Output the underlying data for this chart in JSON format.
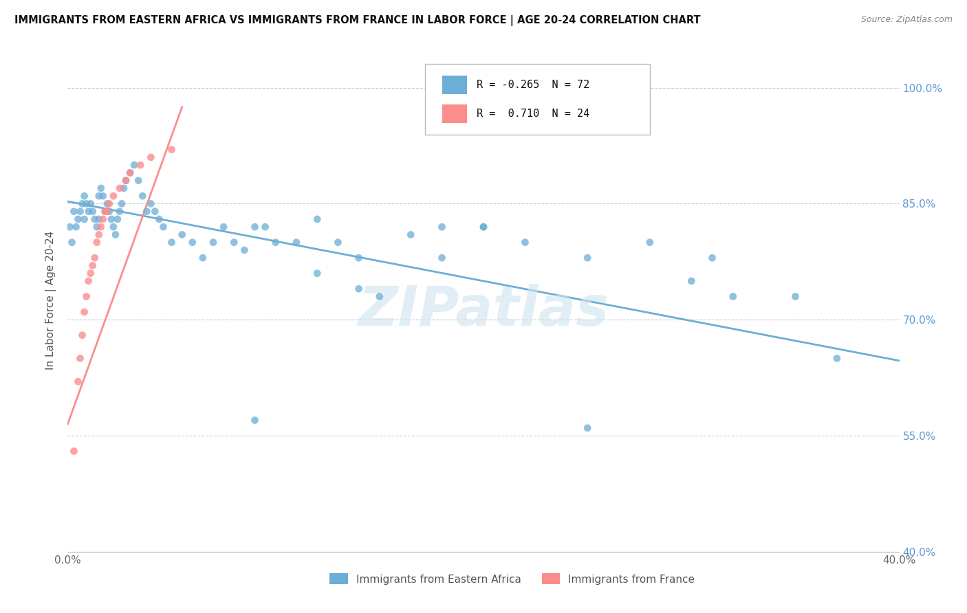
{
  "title": "IMMIGRANTS FROM EASTERN AFRICA VS IMMIGRANTS FROM FRANCE IN LABOR FORCE | AGE 20-24 CORRELATION CHART",
  "source": "Source: ZipAtlas.com",
  "ylabel": "In Labor Force | Age 20-24",
  "xlim": [
    0.0,
    0.4
  ],
  "ylim": [
    0.4,
    1.05
  ],
  "y_tick_positions": [
    0.4,
    0.55,
    0.7,
    0.85,
    1.0
  ],
  "y_tick_labels": [
    "40.0%",
    "55.0%",
    "70.0%",
    "85.0%",
    "100.0%"
  ],
  "x_tick_positions": [
    0.0,
    0.05,
    0.1,
    0.15,
    0.2,
    0.25,
    0.3,
    0.35,
    0.4
  ],
  "x_tick_labels": [
    "0.0%",
    "",
    "",
    "",
    "",
    "",
    "",
    "",
    "40.0%"
  ],
  "R_blue": -0.265,
  "N_blue": 72,
  "R_pink": 0.71,
  "N_pink": 24,
  "blue_color": "#6baed6",
  "pink_color": "#fc8d8d",
  "legend_label_blue": "Immigrants from Eastern Africa",
  "legend_label_pink": "Immigrants from France",
  "watermark": "ZIPatlas",
  "blue_scatter_x": [
    0.001,
    0.002,
    0.003,
    0.004,
    0.005,
    0.006,
    0.007,
    0.008,
    0.008,
    0.009,
    0.01,
    0.011,
    0.012,
    0.013,
    0.014,
    0.015,
    0.015,
    0.016,
    0.017,
    0.018,
    0.019,
    0.02,
    0.021,
    0.022,
    0.023,
    0.024,
    0.025,
    0.026,
    0.027,
    0.028,
    0.03,
    0.032,
    0.034,
    0.036,
    0.038,
    0.04,
    0.042,
    0.044,
    0.046,
    0.05,
    0.055,
    0.06,
    0.065,
    0.07,
    0.075,
    0.08,
    0.085,
    0.09,
    0.095,
    0.1,
    0.11,
    0.12,
    0.13,
    0.14,
    0.15,
    0.165,
    0.18,
    0.2,
    0.22,
    0.25,
    0.28,
    0.3,
    0.31,
    0.32,
    0.35,
    0.37,
    0.2,
    0.25,
    0.18,
    0.12,
    0.14,
    0.09
  ],
  "blue_scatter_y": [
    0.82,
    0.8,
    0.84,
    0.82,
    0.83,
    0.84,
    0.85,
    0.83,
    0.86,
    0.85,
    0.84,
    0.85,
    0.84,
    0.83,
    0.82,
    0.83,
    0.86,
    0.87,
    0.86,
    0.84,
    0.85,
    0.84,
    0.83,
    0.82,
    0.81,
    0.83,
    0.84,
    0.85,
    0.87,
    0.88,
    0.89,
    0.9,
    0.88,
    0.86,
    0.84,
    0.85,
    0.84,
    0.83,
    0.82,
    0.8,
    0.81,
    0.8,
    0.78,
    0.8,
    0.82,
    0.8,
    0.79,
    0.82,
    0.82,
    0.8,
    0.8,
    0.83,
    0.8,
    0.78,
    0.73,
    0.81,
    0.82,
    0.82,
    0.8,
    0.56,
    0.8,
    0.75,
    0.78,
    0.73,
    0.73,
    0.65,
    0.82,
    0.78,
    0.78,
    0.76,
    0.74,
    0.57
  ],
  "pink_scatter_x": [
    0.003,
    0.005,
    0.006,
    0.007,
    0.008,
    0.009,
    0.01,
    0.011,
    0.012,
    0.013,
    0.014,
    0.015,
    0.016,
    0.017,
    0.018,
    0.019,
    0.02,
    0.022,
    0.025,
    0.028,
    0.03,
    0.035,
    0.04,
    0.05
  ],
  "pink_scatter_y": [
    0.53,
    0.62,
    0.65,
    0.68,
    0.71,
    0.73,
    0.75,
    0.76,
    0.77,
    0.78,
    0.8,
    0.81,
    0.82,
    0.83,
    0.84,
    0.84,
    0.85,
    0.86,
    0.87,
    0.88,
    0.89,
    0.9,
    0.91,
    0.92
  ],
  "blue_line_x": [
    0.0,
    0.4
  ],
  "blue_line_y": [
    0.853,
    0.647
  ],
  "pink_line_x": [
    0.0,
    0.055
  ],
  "pink_line_y": [
    0.565,
    0.975
  ]
}
